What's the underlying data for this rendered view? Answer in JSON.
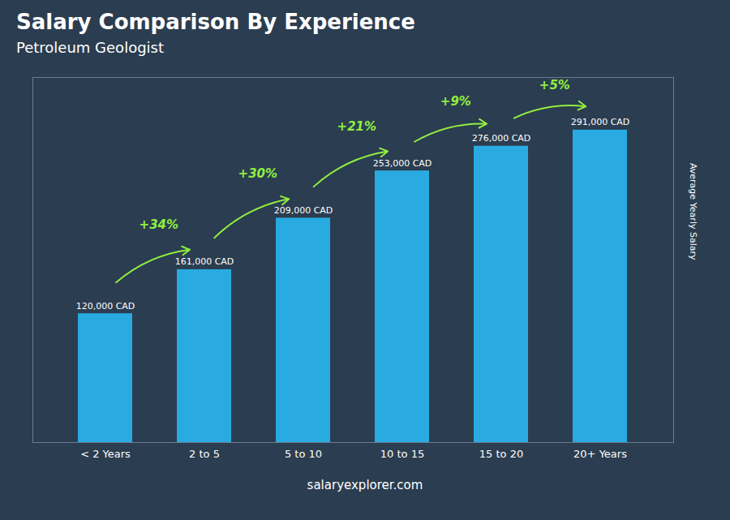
{
  "chart_data": {
    "type": "bar",
    "title": "Salary Comparison By Experience",
    "subtitle": "Petroleum Geologist",
    "categories": [
      "< 2 Years",
      "2 to 5",
      "5 to 10",
      "10 to 15",
      "15 to 20",
      "20+ Years"
    ],
    "values": [
      120000,
      161000,
      209000,
      253000,
      276000,
      291000
    ],
    "value_labels": [
      "120,000 CAD",
      "161,000 CAD",
      "209,000 CAD",
      "253,000 CAD",
      "276,000 CAD",
      "291,000 CAD"
    ],
    "data_labels": true,
    "color": "#29ABE2",
    "ylabel": "Average Yearly Salary",
    "ylim": [
      0,
      340000
    ],
    "tick_labels": "x",
    "grid": false,
    "annotations": [
      {
        "text": "+34%",
        "color": "#90EE40"
      },
      {
        "text": "+30%",
        "color": "#90EE40"
      },
      {
        "text": "+21%",
        "color": "#90EE40"
      },
      {
        "text": "+9%",
        "color": "#90EE40"
      },
      {
        "text": "+5%",
        "color": "#90EE40"
      }
    ],
    "caption": "salaryexplorer.com"
  }
}
